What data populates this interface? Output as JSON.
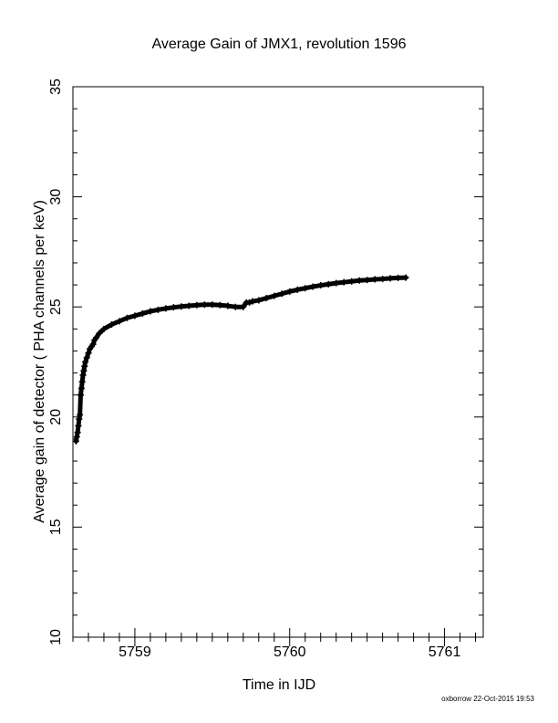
{
  "chart_data": {
    "type": "scatter",
    "title": "Average Gain of JMX1, revolution 1596",
    "xlabel": "Time in IJD",
    "ylabel": "Average gain of detector ( PHA channels per keV)",
    "xlim": [
      5758.6,
      5761.25
    ],
    "ylim": [
      10,
      35
    ],
    "x_ticks": [
      5759,
      5760,
      5761
    ],
    "x_tick_labels": [
      "5759",
      "5760",
      "5761"
    ],
    "x_minor_step": 0.1,
    "y_ticks": [
      10,
      15,
      20,
      25,
      30,
      35
    ],
    "y_tick_labels": [
      "10",
      "15",
      "20",
      "25",
      "30",
      "35"
    ],
    "y_minor_step": 1,
    "grid": false,
    "marker": "+",
    "series": [
      {
        "x": [
          5758.62,
          5758.625,
          5758.63,
          5758.635,
          5758.64,
          5758.645,
          5758.65,
          5758.655,
          5758.66,
          5758.665,
          5758.67,
          5758.675,
          5758.68,
          5758.69,
          5758.7,
          5758.71,
          5758.72,
          5758.73,
          5758.74,
          5758.75,
          5758.77,
          5758.8,
          5758.85,
          5758.9,
          5758.95,
          5759.0,
          5759.05,
          5759.1,
          5759.15,
          5759.2,
          5759.25,
          5759.3,
          5759.35,
          5759.4,
          5759.45,
          5759.5,
          5759.55,
          5759.6,
          5759.65,
          5759.7,
          5759.72,
          5759.74,
          5759.76,
          5759.8,
          5759.85,
          5759.9,
          5759.95,
          5760.0,
          5760.05,
          5760.1,
          5760.15,
          5760.2,
          5760.25,
          5760.3,
          5760.35,
          5760.4,
          5760.45,
          5760.5,
          5760.55,
          5760.6,
          5760.65,
          5760.7,
          5760.75
        ],
        "y": [
          18.9,
          19.1,
          19.3,
          19.6,
          19.9,
          20.1,
          21.0,
          21.3,
          21.6,
          21.9,
          22.1,
          22.3,
          22.5,
          22.7,
          22.9,
          23.1,
          23.2,
          23.3,
          23.5,
          23.6,
          23.8,
          24.0,
          24.2,
          24.35,
          24.5,
          24.6,
          24.7,
          24.8,
          24.87,
          24.93,
          24.98,
          25.02,
          25.05,
          25.08,
          25.1,
          25.1,
          25.08,
          25.05,
          25.0,
          25.0,
          25.2,
          25.2,
          25.25,
          25.3,
          25.4,
          25.5,
          25.6,
          25.7,
          25.78,
          25.85,
          25.92,
          25.98,
          26.03,
          26.08,
          26.12,
          26.16,
          26.2,
          26.22,
          26.25,
          26.27,
          26.3,
          26.32,
          26.33
        ]
      }
    ]
  },
  "footer": {
    "credit": "oxborrow 22-Oct-2015 19:53"
  }
}
